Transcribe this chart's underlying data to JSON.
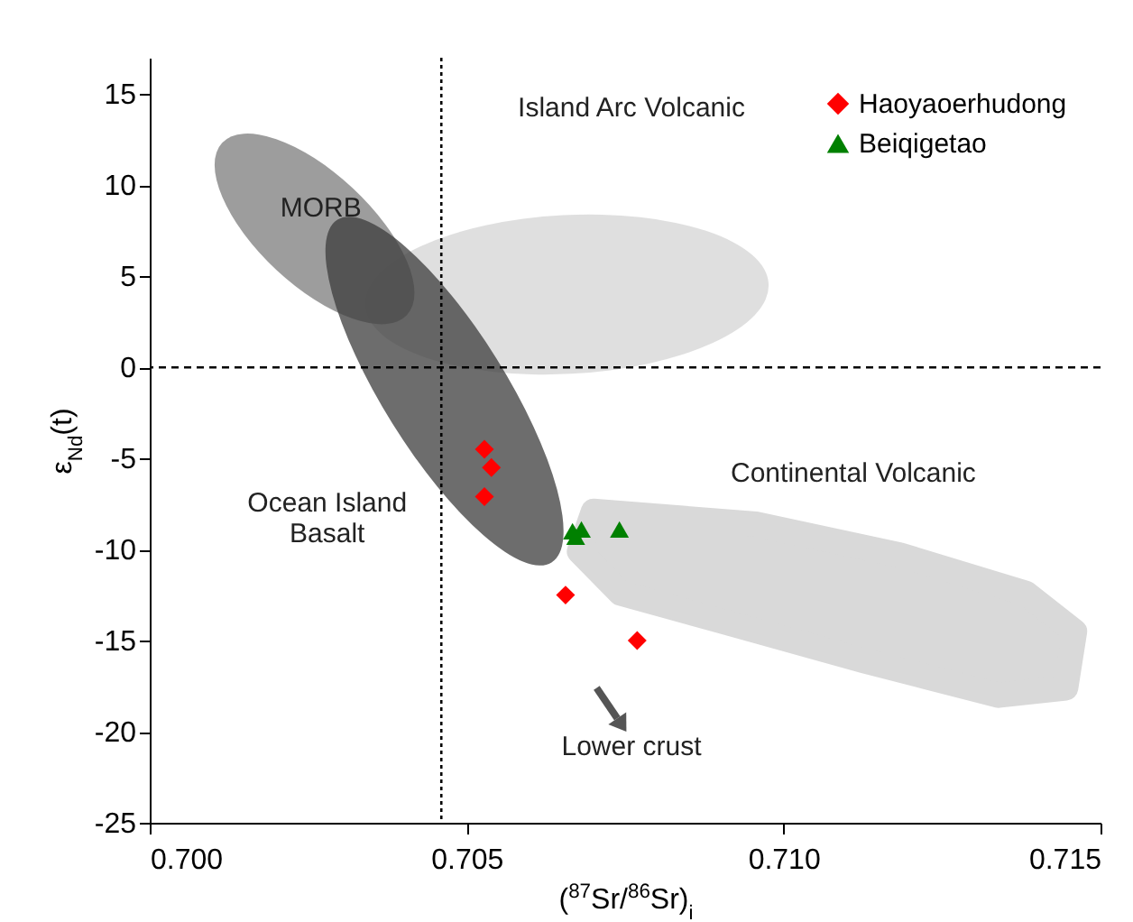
{
  "chart_data": {
    "type": "scatter",
    "xlabel": "($^{87}$Sr/$^{86}$Sr)$_{i}$",
    "ylabel": "ε$_{Nd}$(t)",
    "xlim": [
      0.7,
      0.715
    ],
    "xticks": [
      {
        "value": 0.7,
        "label": "0.700"
      },
      {
        "value": 0.705,
        "label": "0.705"
      },
      {
        "value": 0.71,
        "label": "0.710"
      },
      {
        "value": 0.715,
        "label": "0.715"
      }
    ],
    "ylim": [
      -25,
      17
    ],
    "yticks": [
      -25,
      -20,
      -15,
      -10,
      -5,
      0,
      5,
      10,
      15
    ],
    "legend": "top right",
    "grid": false,
    "series": [
      {
        "name": "Haoyaoerhudong",
        "color": "#ff0000",
        "marker": "diamond",
        "x": [
          0.70528,
          0.70539,
          0.70528,
          0.70656,
          0.70769
        ],
        "values": [
          -4.5,
          -5.5,
          -7.1,
          -12.5,
          -15.0
        ]
      },
      {
        "name": "Beiqigetao",
        "color": "#008000",
        "marker": "triangle",
        "x": [
          0.70667,
          0.70681,
          0.70672,
          0.70741
        ],
        "values": [
          -9.0,
          -8.9,
          -9.3,
          -8.9
        ]
      }
    ],
    "ref_lines": [
      {
        "axis": "x",
        "value": 0.7046,
        "line_style": "dotted"
      },
      {
        "axis": "y",
        "value": 0,
        "line_style": "dashed"
      }
    ],
    "annotations": [
      "MORB",
      "Island Arc Volcanic",
      "Ocean Island\nBasalt",
      "Continental Volcanic",
      "Lower crust"
    ]
  }
}
